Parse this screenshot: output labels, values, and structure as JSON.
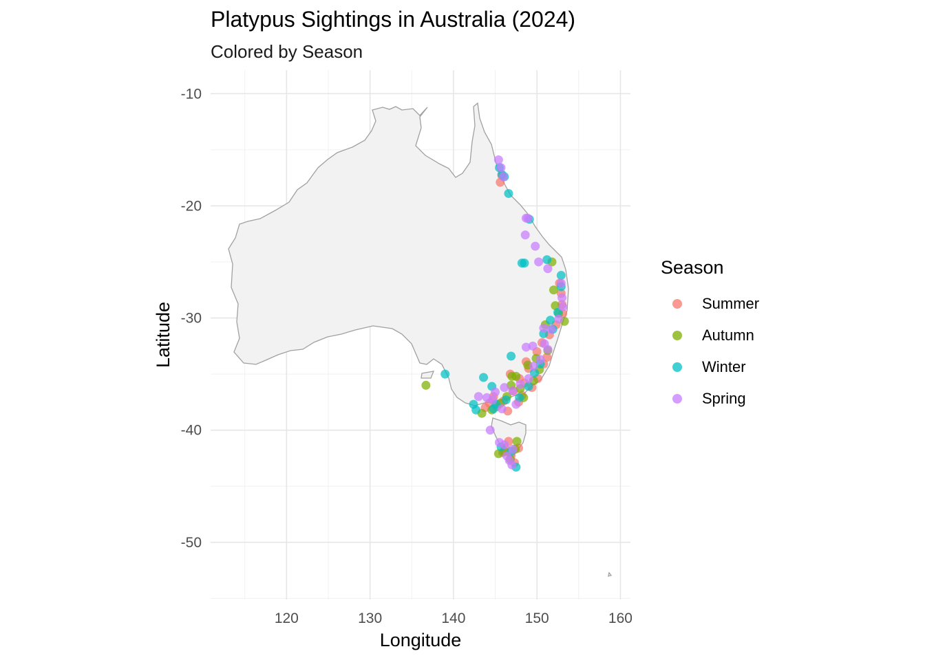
{
  "chart_data": {
    "type": "scatter",
    "title": "Platypus Sightings in Australia (2024)",
    "subtitle": "Colored by Season",
    "xlabel": "Longitude",
    "ylabel": "Latitude",
    "xlim": [
      110.9,
      161.2
    ],
    "ylim": [
      -55.1,
      -7.9
    ],
    "x_ticks": [
      120,
      130,
      140,
      150,
      160
    ],
    "y_ticks": [
      -10,
      -20,
      -30,
      -40,
      -50
    ],
    "grid": true,
    "legend": {
      "title": "Season",
      "position": "right"
    },
    "basemap": "Australia outline (light grey fill, grey border)",
    "series": [
      {
        "name": "Summer",
        "color": "#F8766D",
        "points": [
          [
            145.6,
            -17.9
          ],
          [
            145.8,
            -17.3
          ],
          [
            146.8,
            -35.0
          ],
          [
            150.0,
            -33.0
          ],
          [
            150.6,
            -32.2
          ],
          [
            151.2,
            -33.5
          ],
          [
            152.9,
            -27.8
          ],
          [
            153.0,
            -28.8
          ],
          [
            149.0,
            -34.5
          ],
          [
            148.5,
            -35.8
          ],
          [
            147.2,
            -36.5
          ],
          [
            146.0,
            -37.4
          ],
          [
            145.2,
            -37.9
          ],
          [
            144.8,
            -37.0
          ],
          [
            146.5,
            -38.3
          ],
          [
            147.8,
            -37.5
          ],
          [
            148.2,
            -36.9
          ],
          [
            149.4,
            -36.2
          ],
          [
            150.1,
            -35.4
          ],
          [
            146.2,
            -41.6
          ],
          [
            146.9,
            -42.3
          ],
          [
            147.3,
            -42.9
          ],
          [
            145.9,
            -42.0
          ],
          [
            147.8,
            -41.6
          ],
          [
            146.6,
            -41.0
          ],
          [
            143.8,
            -38.0
          ],
          [
            144.3,
            -37.6
          ],
          [
            151.5,
            -31.5
          ],
          [
            152.3,
            -30.6
          ],
          [
            150.8,
            -34.1
          ],
          [
            148.7,
            -33.9
          ],
          [
            147.9,
            -35.4
          ],
          [
            153.1,
            -29.6
          ],
          [
            152.7,
            -26.9
          ]
        ]
      },
      {
        "name": "Autumn",
        "color": "#7CAE00",
        "points": [
          [
            136.7,
            -36.0
          ],
          [
            143.4,
            -38.5
          ],
          [
            147.0,
            -35.2
          ],
          [
            147.5,
            -35.2
          ],
          [
            151.0,
            -30.6
          ],
          [
            152.2,
            -28.9
          ],
          [
            152.0,
            -27.5
          ],
          [
            153.3,
            -30.3
          ],
          [
            151.8,
            -25.0
          ],
          [
            148.9,
            -34.2
          ],
          [
            149.6,
            -35.6
          ],
          [
            148.0,
            -36.3
          ],
          [
            146.4,
            -37.0
          ],
          [
            145.6,
            -37.6
          ],
          [
            144.6,
            -38.2
          ],
          [
            147.6,
            -41.0
          ],
          [
            146.1,
            -41.9
          ],
          [
            145.4,
            -42.1
          ],
          [
            146.8,
            -42.6
          ],
          [
            147.4,
            -41.7
          ],
          [
            150.3,
            -34.6
          ],
          [
            149.9,
            -33.6
          ],
          [
            151.3,
            -32.9
          ],
          [
            152.6,
            -29.6
          ],
          [
            148.4,
            -37.1
          ],
          [
            146.9,
            -36.0
          ]
        ]
      },
      {
        "name": "Winter",
        "color": "#00BFC4",
        "points": [
          [
            139.0,
            -35.0
          ],
          [
            142.4,
            -37.7
          ],
          [
            142.7,
            -38.2
          ],
          [
            143.6,
            -35.3
          ],
          [
            144.6,
            -36.1
          ],
          [
            145.5,
            -16.6
          ],
          [
            145.8,
            -17.2
          ],
          [
            146.1,
            -17.4
          ],
          [
            146.6,
            -18.9
          ],
          [
            148.2,
            -25.1
          ],
          [
            148.5,
            -25.1
          ],
          [
            149.1,
            -21.2
          ],
          [
            151.2,
            -24.8
          ],
          [
            152.9,
            -26.2
          ],
          [
            152.9,
            -27.2
          ],
          [
            151.6,
            -30.2
          ],
          [
            150.8,
            -31.4
          ],
          [
            146.9,
            -33.4
          ],
          [
            147.5,
            -43.3
          ],
          [
            149.0,
            -36.1
          ],
          [
            147.9,
            -37.1
          ],
          [
            146.3,
            -37.3
          ],
          [
            145.1,
            -37.7
          ],
          [
            150.4,
            -34.1
          ],
          [
            149.7,
            -34.9
          ],
          [
            152.5,
            -29.5
          ],
          [
            151.9,
            -31.0
          ],
          [
            144.8,
            -38.1
          ],
          [
            145.7,
            -41.5
          ],
          [
            146.9,
            -41.9
          ]
        ]
      },
      {
        "name": "Spring",
        "color": "#C77CFF",
        "points": [
          [
            145.4,
            -15.9
          ],
          [
            145.7,
            -16.6
          ],
          [
            146.0,
            -17.4
          ],
          [
            148.7,
            -21.1
          ],
          [
            148.9,
            -21.1
          ],
          [
            148.6,
            -22.6
          ],
          [
            149.8,
            -23.6
          ],
          [
            150.2,
            -25.0
          ],
          [
            151.3,
            -25.6
          ],
          [
            144.4,
            -40.0
          ],
          [
            143.0,
            -37.0
          ],
          [
            144.0,
            -37.1
          ],
          [
            145.0,
            -36.6
          ],
          [
            146.1,
            -36.2
          ],
          [
            147.1,
            -36.5
          ],
          [
            148.0,
            -35.9
          ],
          [
            149.0,
            -35.4
          ],
          [
            149.6,
            -34.3
          ],
          [
            150.4,
            -33.7
          ],
          [
            150.9,
            -32.3
          ],
          [
            148.7,
            -32.6
          ],
          [
            149.5,
            -32.5
          ],
          [
            151.7,
            -31.0
          ],
          [
            152.6,
            -30.1
          ],
          [
            153.0,
            -28.2
          ],
          [
            153.1,
            -29.0
          ],
          [
            152.9,
            -26.9
          ],
          [
            145.8,
            -38.1
          ],
          [
            144.7,
            -37.3
          ],
          [
            147.5,
            -37.7
          ],
          [
            146.1,
            -41.3
          ],
          [
            147.1,
            -41.7
          ],
          [
            146.7,
            -42.7
          ],
          [
            147.0,
            -43.1
          ],
          [
            145.5,
            -41.1
          ],
          [
            146.4,
            -42.3
          ],
          [
            150.8,
            -30.9
          ],
          [
            151.3,
            -32.8
          ]
        ]
      }
    ]
  }
}
